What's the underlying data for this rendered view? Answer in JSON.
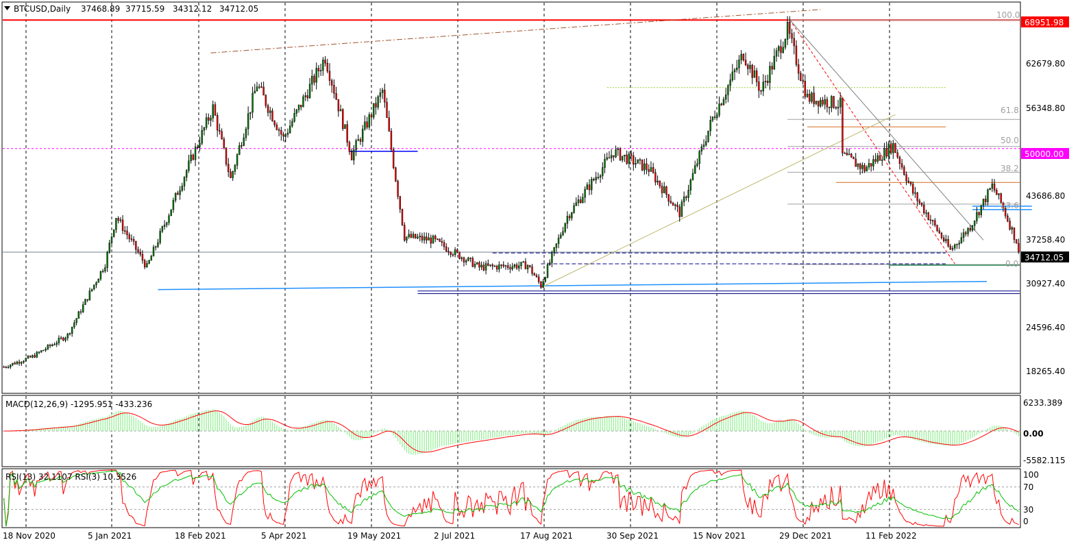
{
  "header": {
    "symbol": "BTCUSD,Daily",
    "open": "37468.89",
    "high": "37715.59",
    "low": "34312.12",
    "close": "34712.05"
  },
  "price_axis": [
    "62679.80",
    "56348.80",
    "43686.80",
    "37258.40",
    "30927.40",
    "24596.40",
    "18265.40"
  ],
  "price_badges": {
    "ath": {
      "label": "68951.98",
      "color": "#ff0000"
    },
    "round": {
      "label": "50000.00",
      "color": "#ff00ff"
    },
    "last": {
      "label": "34712.05",
      "color": "#000000"
    }
  },
  "fib_labels": [
    "100.0",
    "61.8",
    "50.0",
    "38.2",
    "23.6",
    "0.0"
  ],
  "date_axis": [
    "18 Nov 2020",
    "5 Jan 2021",
    "18 Feb 2021",
    "5 Apr 2021",
    "19 May 2021",
    "2 Jul 2021",
    "17 Aug 2021",
    "30 Sep 2021",
    "15 Nov 2021",
    "29 Dec 2021",
    "11 Feb 2022"
  ],
  "macd": {
    "label": "MACD(12,26,9) -1295.951 -433.236",
    "axis": [
      "6233.389",
      "0.00",
      "-5582.115"
    ]
  },
  "rsi": {
    "label": "RSI(13) 32.1107  RSI(3) 10.3526",
    "axis": [
      "100",
      "70",
      "30",
      "0"
    ]
  },
  "colors": {
    "bull": "#008000",
    "bear": "#ff0000",
    "outline": "#000000",
    "macd_hist": "#90ee90",
    "macd_signal": "#ff0000",
    "rsi13": "#00c000",
    "rsi3": "#ff0000"
  },
  "chart_data": {
    "type": "candlestick",
    "title": "BTCUSD,Daily",
    "ylim": [
      14000,
      71500
    ],
    "x_range": [
      "2020-11-18",
      "2022-02-23"
    ],
    "series": [
      {
        "name": "BTCUSD",
        "approx_close_path": [
          [
            "2020-11-18",
            17800
          ],
          [
            "2020-12-01",
            19300
          ],
          [
            "2020-12-17",
            22500
          ],
          [
            "2021-01-03",
            33000
          ],
          [
            "2021-01-08",
            40000
          ],
          [
            "2021-01-22",
            32500
          ],
          [
            "2021-02-08",
            46000
          ],
          [
            "2021-02-21",
            56000
          ],
          [
            "2021-03-01",
            45500
          ],
          [
            "2021-03-13",
            59500
          ],
          [
            "2021-03-25",
            51500
          ],
          [
            "2021-04-13",
            63500
          ],
          [
            "2021-04-25",
            49000
          ],
          [
            "2021-05-09",
            58500
          ],
          [
            "2021-05-19",
            37000
          ],
          [
            "2021-06-01",
            36500
          ],
          [
            "2021-06-22",
            32500
          ],
          [
            "2021-07-14",
            32800
          ],
          [
            "2021-07-20",
            29800
          ],
          [
            "2021-08-01",
            40000
          ],
          [
            "2021-08-22",
            49500
          ],
          [
            "2021-09-07",
            47000
          ],
          [
            "2021-09-21",
            40500
          ],
          [
            "2021-10-06",
            54500
          ],
          [
            "2021-10-20",
            64000
          ],
          [
            "2021-10-28",
            58500
          ],
          [
            "2021-11-09",
            67500
          ],
          [
            "2021-11-18",
            57500
          ],
          [
            "2021-12-03",
            56500
          ],
          [
            "2021-12-04",
            49000
          ],
          [
            "2021-12-14",
            47000
          ],
          [
            "2021-12-27",
            50500
          ],
          [
            "2022-01-05",
            43500
          ],
          [
            "2022-01-22",
            35000
          ],
          [
            "2022-01-31",
            38500
          ],
          [
            "2022-02-10",
            44500
          ],
          [
            "2022-02-14",
            42000
          ],
          [
            "2022-02-23",
            34712
          ]
        ]
      }
    ],
    "levels": {
      "ath": 68951.98,
      "round": 50000,
      "last": 34712.05
    },
    "fib": {
      "100.0": 68951.98,
      "61.8": 54300,
      "50.0": 50300,
      "38.2": 46500,
      "23.6": 41800,
      "0.0": 32900
    },
    "macd": {
      "ylim": [
        -7000,
        7000
      ],
      "value": -1295.951,
      "signal": -433.236
    },
    "rsi": {
      "ylim": [
        0,
        100
      ],
      "levels": [
        30,
        70
      ],
      "rsi13": 32.1107,
      "rsi3": 10.3526
    }
  }
}
